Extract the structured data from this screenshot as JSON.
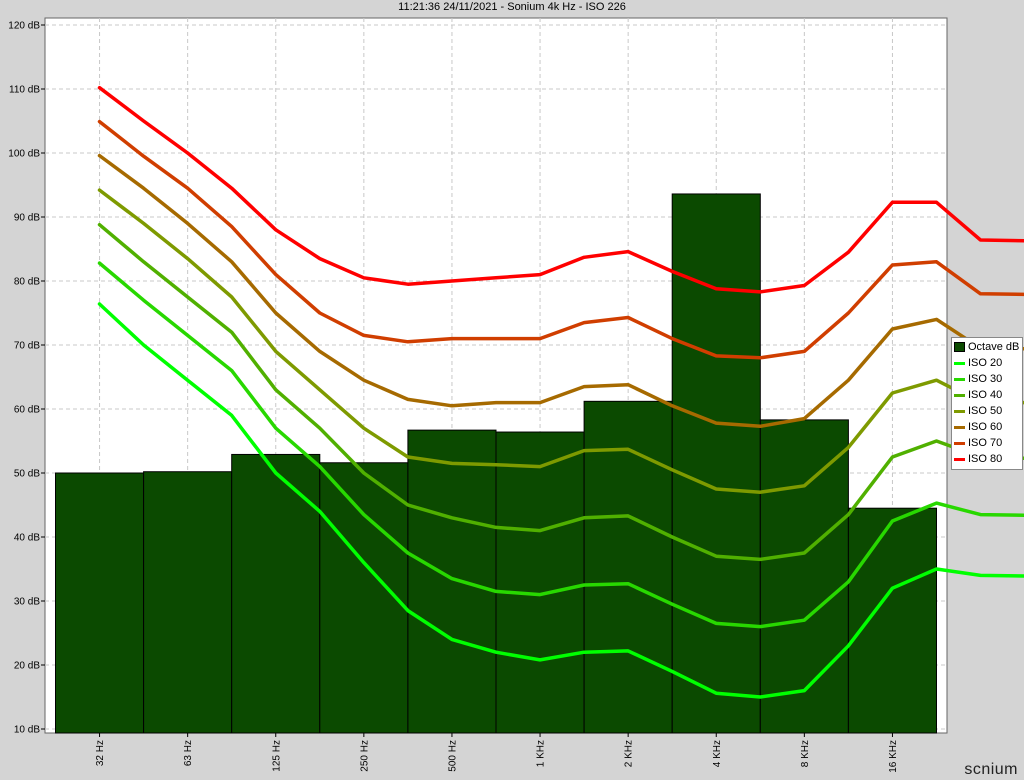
{
  "chart_data": {
    "type": "bar+line",
    "title": "11:21:36 24/11/2021 - Sonium 4k Hz - ISO 226",
    "categories": [
      "32 Hz",
      "63 Hz",
      "125 Hz",
      "250 Hz",
      "500 Hz",
      "1 KHz",
      "2 KHz",
      "4 KHz",
      "8 KHz",
      "16 KHz"
    ],
    "y_tick_labels": [
      "10 dB",
      "20 dB",
      "30 dB",
      "40 dB",
      "50 dB",
      "60 dB",
      "70 dB",
      "80 dB",
      "90 dB",
      "100 dB",
      "110 dB",
      "120 dB"
    ],
    "ylim": [
      10,
      120
    ],
    "grid": true,
    "legend_position": "right",
    "bars": {
      "name": "Octave dB",
      "color": "#0b4a00",
      "values": [
        50.0,
        50.2,
        52.9,
        51.6,
        56.7,
        56.4,
        61.2,
        93.6,
        58.3,
        44.5
      ]
    },
    "curve_x_scale": "log2 index from 32 Hz (0 = 32 Hz, 9 = 16 KHz)",
    "series": [
      {
        "name": "ISO 20",
        "color": "#00ff00",
        "points": [
          [
            0,
            76.4
          ],
          [
            0.5,
            70.0
          ],
          [
            1,
            64.5
          ],
          [
            1.5,
            59.0
          ],
          [
            2,
            50.0
          ],
          [
            2.5,
            44.0
          ],
          [
            3,
            36.0
          ],
          [
            3.5,
            28.5
          ],
          [
            4,
            24.0
          ],
          [
            4.5,
            22.0
          ],
          [
            5,
            20.8
          ],
          [
            5.5,
            22.0
          ],
          [
            6,
            22.2
          ],
          [
            6.5,
            19.0
          ],
          [
            7,
            15.6
          ],
          [
            7.5,
            15.0
          ],
          [
            8,
            16.0
          ],
          [
            8.5,
            23.0
          ],
          [
            9,
            32.0
          ],
          [
            9.5,
            35.0
          ],
          [
            10,
            34.0
          ],
          [
            10.5,
            33.9
          ]
        ]
      },
      {
        "name": "ISO 30",
        "color": "#28d800",
        "points": [
          [
            0,
            82.8
          ],
          [
            0.5,
            77.0
          ],
          [
            1,
            71.5
          ],
          [
            1.5,
            66.0
          ],
          [
            2,
            57.0
          ],
          [
            2.5,
            51.0
          ],
          [
            3,
            43.5
          ],
          [
            3.5,
            37.5
          ],
          [
            4,
            33.5
          ],
          [
            4.5,
            31.5
          ],
          [
            5,
            31.0
          ],
          [
            5.5,
            32.5
          ],
          [
            6,
            32.7
          ],
          [
            6.5,
            29.5
          ],
          [
            7,
            26.5
          ],
          [
            7.5,
            26.0
          ],
          [
            8,
            27.0
          ],
          [
            8.5,
            33.0
          ],
          [
            9,
            42.5
          ],
          [
            9.5,
            45.3
          ],
          [
            10,
            43.5
          ],
          [
            10.5,
            43.4
          ]
        ]
      },
      {
        "name": "ISO 40",
        "color": "#50b000",
        "points": [
          [
            0,
            88.8
          ],
          [
            0.5,
            83.0
          ],
          [
            1,
            77.5
          ],
          [
            1.5,
            72.0
          ],
          [
            2,
            63.0
          ],
          [
            2.5,
            57.0
          ],
          [
            3,
            50.0
          ],
          [
            3.5,
            45.0
          ],
          [
            4,
            43.0
          ],
          [
            4.5,
            41.5
          ],
          [
            5,
            41.0
          ],
          [
            5.5,
            43.0
          ],
          [
            6,
            43.3
          ],
          [
            6.5,
            40.0
          ],
          [
            7,
            37.0
          ],
          [
            7.5,
            36.5
          ],
          [
            8,
            37.5
          ],
          [
            8.5,
            43.5
          ],
          [
            9,
            52.5
          ],
          [
            9.5,
            55.0
          ],
          [
            10,
            52.5
          ],
          [
            10.5,
            52.3
          ]
        ]
      },
      {
        "name": "ISO 50",
        "color": "#7e9a00",
        "points": [
          [
            0,
            94.2
          ],
          [
            0.5,
            89.0
          ],
          [
            1,
            83.5
          ],
          [
            1.5,
            77.5
          ],
          [
            2,
            69.0
          ],
          [
            2.5,
            63.0
          ],
          [
            3,
            57.0
          ],
          [
            3.5,
            52.5
          ],
          [
            4,
            51.5
          ],
          [
            4.5,
            51.3
          ],
          [
            5,
            51.0
          ],
          [
            5.5,
            53.5
          ],
          [
            6,
            53.7
          ],
          [
            6.5,
            50.5
          ],
          [
            7,
            47.5
          ],
          [
            7.5,
            47.0
          ],
          [
            8,
            48.0
          ],
          [
            8.5,
            54.0
          ],
          [
            9,
            62.5
          ],
          [
            9.5,
            64.5
          ],
          [
            10,
            61.0
          ],
          [
            10.5,
            61.0
          ]
        ]
      },
      {
        "name": "ISO 60",
        "color": "#a66a00",
        "points": [
          [
            0,
            99.6
          ],
          [
            0.5,
            94.5
          ],
          [
            1,
            89.0
          ],
          [
            1.5,
            83.0
          ],
          [
            2,
            75.0
          ],
          [
            2.5,
            69.0
          ],
          [
            3,
            64.5
          ],
          [
            3.5,
            61.5
          ],
          [
            4,
            60.5
          ],
          [
            4.5,
            61.0
          ],
          [
            5,
            61.0
          ],
          [
            5.5,
            63.5
          ],
          [
            6,
            63.8
          ],
          [
            6.5,
            60.5
          ],
          [
            7,
            57.8
          ],
          [
            7.5,
            57.3
          ],
          [
            8,
            58.5
          ],
          [
            8.5,
            64.5
          ],
          [
            9,
            72.5
          ],
          [
            9.5,
            74.0
          ],
          [
            10,
            69.5
          ],
          [
            10.5,
            69.4
          ]
        ]
      },
      {
        "name": "ISO 70",
        "color": "#d03e00",
        "points": [
          [
            0,
            104.9
          ],
          [
            0.5,
            99.5
          ],
          [
            1,
            94.5
          ],
          [
            1.5,
            88.5
          ],
          [
            2,
            81.0
          ],
          [
            2.5,
            75.0
          ],
          [
            3,
            71.5
          ],
          [
            3.5,
            70.5
          ],
          [
            4,
            71.0
          ],
          [
            4.5,
            71.0
          ],
          [
            5,
            71.0
          ],
          [
            5.5,
            73.5
          ],
          [
            6,
            74.3
          ],
          [
            6.5,
            71.0
          ],
          [
            7,
            68.3
          ],
          [
            7.5,
            68.0
          ],
          [
            8,
            69.0
          ],
          [
            8.5,
            75.0
          ],
          [
            9,
            82.5
          ],
          [
            9.5,
            83.0
          ],
          [
            10,
            78.0
          ],
          [
            10.5,
            77.9
          ]
        ]
      },
      {
        "name": "ISO 80",
        "color": "#ff0000",
        "points": [
          [
            0,
            110.2
          ],
          [
            0.5,
            105.0
          ],
          [
            1,
            100.0
          ],
          [
            1.5,
            94.5
          ],
          [
            2,
            88.0
          ],
          [
            2.5,
            83.5
          ],
          [
            3,
            80.5
          ],
          [
            3.5,
            79.5
          ],
          [
            4,
            80.0
          ],
          [
            4.5,
            80.5
          ],
          [
            5,
            81.0
          ],
          [
            5.5,
            83.7
          ],
          [
            6,
            84.6
          ],
          [
            6.5,
            81.5
          ],
          [
            7,
            78.8
          ],
          [
            7.5,
            78.3
          ],
          [
            8,
            79.3
          ],
          [
            8.5,
            84.5
          ],
          [
            9,
            92.3
          ],
          [
            9.5,
            92.3
          ],
          [
            10,
            86.4
          ],
          [
            10.5,
            86.3
          ]
        ]
      }
    ]
  },
  "brand": "scnium"
}
